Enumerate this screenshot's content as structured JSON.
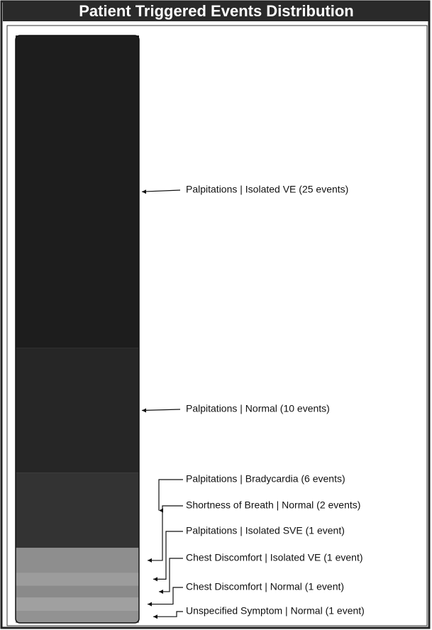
{
  "chart_data": {
    "type": "stacked-column",
    "title": "Patient Triggered Events Distribution",
    "categories": [
      "Palpitations | Isolated VE (25 events)",
      "Palpitations | Normal (10 events)",
      "Palpitations | Bradycardia (6 events)",
      "Shortness of Breath | Normal (2 events)",
      "Palpitations | Isolated SVE (1 event)",
      "Chest Discomfort | Isolated VE (1 event)",
      "Chest Discomfort | Normal (1 event)",
      "Unspecified Symptom | Normal (1 event)"
    ],
    "values": [
      25,
      10,
      6,
      2,
      1,
      1,
      1,
      1
    ],
    "colors": [
      "#1d1d1d",
      "#262626",
      "#333333",
      "#8e8e8e",
      "#9c9c9c",
      "#8a8a8a",
      "#a0a0a0",
      "#929292"
    ]
  }
}
